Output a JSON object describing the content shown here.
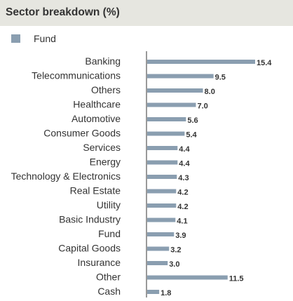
{
  "header": {
    "title": "Sector breakdown (%)"
  },
  "legend": {
    "label": "Fund"
  },
  "colors": {
    "bar": "#8a9eb0",
    "axis": "#999999",
    "header_bg": "#e6e6e0"
  },
  "chart_data": {
    "type": "bar",
    "orientation": "horizontal",
    "title": "Sector breakdown (%)",
    "categories": [
      "Banking",
      "Telecommunications",
      "Others",
      "Healthcare",
      "Automotive",
      "Consumer Goods",
      "Services",
      "Energy",
      "Technology & Electronics",
      "Real Estate",
      "Utility",
      "Basic Industry",
      "Fund",
      "Capital Goods",
      "Insurance",
      "Other",
      "Cash"
    ],
    "series": [
      {
        "name": "Fund",
        "values": [
          15.4,
          9.5,
          8.0,
          7.0,
          5.6,
          5.4,
          4.4,
          4.4,
          4.3,
          4.2,
          4.2,
          4.1,
          3.9,
          3.2,
          3.0,
          11.5,
          1.8
        ]
      }
    ],
    "value_labels": [
      "15.4",
      "9.5",
      "8.0",
      "7.0",
      "5.6",
      "5.4",
      "4.4",
      "4.4",
      "4.3",
      "4.2",
      "4.2",
      "4.1",
      "3.9",
      "3.2",
      "3.0",
      "11.5",
      "1.8"
    ],
    "xlim": [
      0,
      15.4
    ],
    "grid": false,
    "legend_position": "top-left"
  }
}
